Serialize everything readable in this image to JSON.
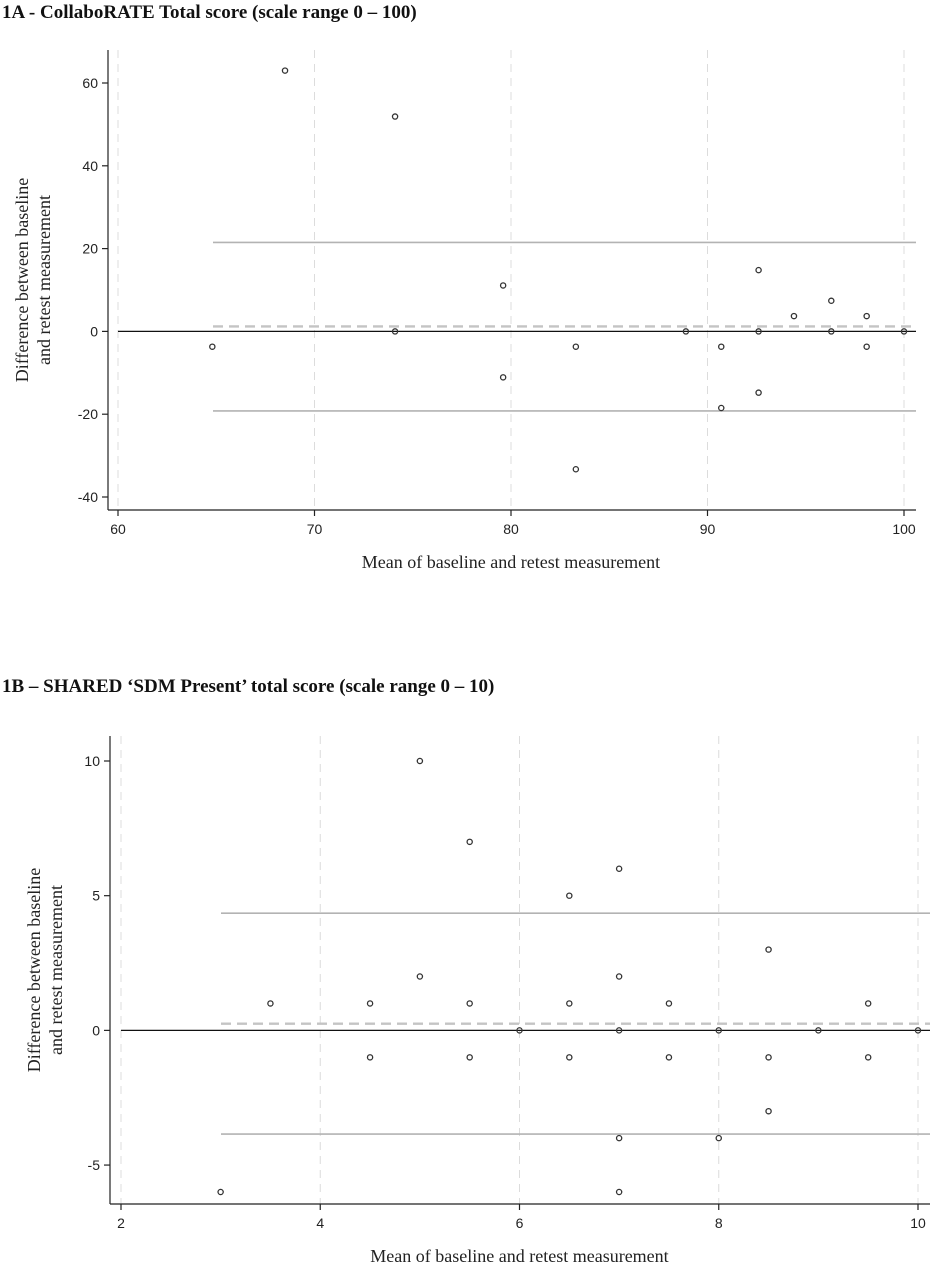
{
  "chart_data": [
    {
      "type": "scatter",
      "title": "1A - CollaboRATE Total score (scale range 0 – 100)",
      "xlabel": "Mean of baseline and retest measurement",
      "ylabel_lines": [
        "Difference between baseline",
        "and retest measurement"
      ],
      "xlim": [
        60,
        100
      ],
      "ylim": [
        -40,
        60
      ],
      "xticks": [
        60,
        70,
        80,
        90,
        100
      ],
      "yticks": [
        -40,
        -20,
        0,
        20,
        40,
        60
      ],
      "grid": "vertical dashed",
      "reference_lines": {
        "zero": 0,
        "mean_difference": 1.2,
        "upper_limit_of_agreement": 21.5,
        "lower_limit_of_agreement": -19.2
      },
      "points": [
        {
          "x": 64.8,
          "y": -3.7
        },
        {
          "x": 68.5,
          "y": 63.0
        },
        {
          "x": 74.1,
          "y": 51.9
        },
        {
          "x": 74.1,
          "y": 0
        },
        {
          "x": 79.6,
          "y": 11.1
        },
        {
          "x": 79.6,
          "y": -11.1
        },
        {
          "x": 83.3,
          "y": -3.7
        },
        {
          "x": 83.3,
          "y": -33.3
        },
        {
          "x": 88.9,
          "y": 0
        },
        {
          "x": 90.7,
          "y": -3.7
        },
        {
          "x": 90.7,
          "y": -18.5
        },
        {
          "x": 92.6,
          "y": 14.8
        },
        {
          "x": 92.6,
          "y": 0
        },
        {
          "x": 92.6,
          "y": -14.8
        },
        {
          "x": 94.4,
          "y": 3.7
        },
        {
          "x": 96.3,
          "y": 7.4
        },
        {
          "x": 96.3,
          "y": 0
        },
        {
          "x": 98.1,
          "y": 3.7
        },
        {
          "x": 98.1,
          "y": -3.7
        },
        {
          "x": 100,
          "y": 0
        }
      ]
    },
    {
      "type": "scatter",
      "title": "1B – SHARED ‘SDM Present’ total score (scale range 0 – 10)",
      "xlabel": "Mean of baseline and retest measurement",
      "ylabel_lines": [
        "Difference between baseline",
        "and retest measurement"
      ],
      "xlim": [
        2,
        10
      ],
      "ylim": [
        -6,
        10
      ],
      "xticks": [
        2,
        4,
        6,
        8,
        10
      ],
      "yticks": [
        -5,
        0,
        5,
        10
      ],
      "grid": "vertical dashed",
      "reference_lines": {
        "zero": 0,
        "mean_difference": 0.25,
        "upper_limit_of_agreement": 4.35,
        "lower_limit_of_agreement": -3.85
      },
      "points": [
        {
          "x": 3,
          "y": -6
        },
        {
          "x": 3.5,
          "y": 1
        },
        {
          "x": 4.5,
          "y": 1
        },
        {
          "x": 4.5,
          "y": -1
        },
        {
          "x": 5,
          "y": 10
        },
        {
          "x": 5,
          "y": 2
        },
        {
          "x": 5.5,
          "y": 7
        },
        {
          "x": 5.5,
          "y": 1
        },
        {
          "x": 5.5,
          "y": -1
        },
        {
          "x": 6,
          "y": 0
        },
        {
          "x": 6.5,
          "y": 5
        },
        {
          "x": 6.5,
          "y": 1
        },
        {
          "x": 6.5,
          "y": -1
        },
        {
          "x": 7,
          "y": 6
        },
        {
          "x": 7,
          "y": 2
        },
        {
          "x": 7,
          "y": 0
        },
        {
          "x": 7,
          "y": -4
        },
        {
          "x": 7,
          "y": -6
        },
        {
          "x": 7.5,
          "y": 1
        },
        {
          "x": 7.5,
          "y": -1
        },
        {
          "x": 8,
          "y": 0
        },
        {
          "x": 8,
          "y": -4
        },
        {
          "x": 8.5,
          "y": 3
        },
        {
          "x": 8.5,
          "y": -1
        },
        {
          "x": 8.5,
          "y": -3
        },
        {
          "x": 9,
          "y": 0
        },
        {
          "x": 9.5,
          "y": 1
        },
        {
          "x": 9.5,
          "y": -1
        },
        {
          "x": 10,
          "y": 0
        }
      ]
    }
  ]
}
